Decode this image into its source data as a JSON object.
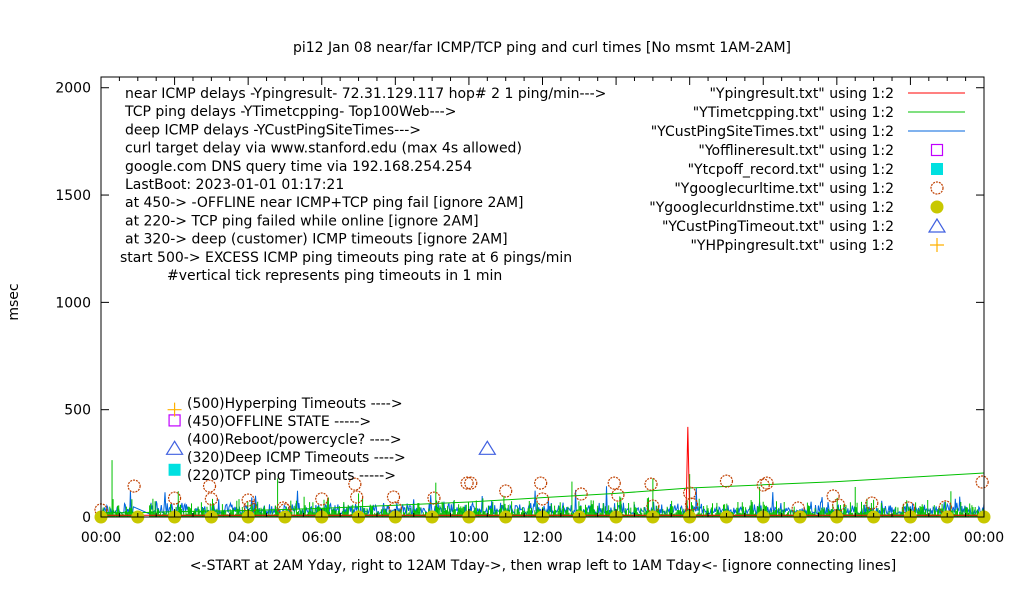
{
  "chart_data": {
    "type": "line",
    "title": "pi12  Jan 08  near/far ICMP/TCP ping and curl times [No msmt 1AM-2AM]",
    "xlabel": "<-START at 2AM Yday, right to 12AM Tday->, then wrap left to 1AM Tday<- [ignore connecting lines]",
    "ylabel": "msec",
    "xlim": [
      0,
      24
    ],
    "ylim": [
      0,
      2050
    ],
    "x_ticks": [
      "00:00",
      "02:00",
      "04:00",
      "06:00",
      "08:00",
      "10:00",
      "12:00",
      "14:00",
      "16:00",
      "18:00",
      "20:00",
      "22:00",
      "00:00"
    ],
    "y_ticks": [
      0,
      500,
      1000,
      1500,
      2000
    ],
    "grid": false,
    "legend_placement": "top-right",
    "notes": [
      "near ICMP delays -Ypingresult- 72.31.129.117 hop# 2 1 ping/min--->",
      "TCP ping delays -YTimetcpping- Top100Web--->",
      "deep ICMP delays -YCustPingSiteTimes--->",
      "curl target delay via www.stanford.edu (max 4s allowed)",
      "google.com DNS query time via 192.168.254.254",
      "LastBoot: 2023-01-01 01:17:21",
      "at 450-> -OFFLINE near ICMP+TCP ping fail [ignore 2AM]",
      "at 220-> TCP ping failed while online [ignore 2AM]",
      "at 320-> deep (customer) ICMP timeouts [ignore 2AM]",
      "start 500-> EXCESS ICMP ping timeouts ping rate at 6 pings/min",
      "#vertical tick represents ping timeouts in 1 min"
    ],
    "key_labels": [
      "(500)Hyperping Timeouts ---->",
      "(450)OFFLINE STATE ----->",
      "(400)Reboot/powercycle? ---->",
      "(320)Deep ICMP Timeouts ---->",
      "(220)TCP ping Timeouts ----->"
    ],
    "series": [
      {
        "name": "\"Ypingresult.txt\" using 1:2",
        "style": "line",
        "color": "#ff0000",
        "points": [
          [
            0,
            8
          ],
          [
            15.9,
            8
          ],
          [
            15.95,
            420
          ],
          [
            16.0,
            8
          ],
          [
            24,
            8
          ]
        ]
      },
      {
        "name": "\"YTimetcpping.txt\" using 1:2",
        "style": "line",
        "color": "#00c000",
        "points": [
          [
            0,
            20
          ],
          [
            1,
            20
          ],
          [
            2,
            25
          ],
          [
            4,
            30
          ],
          [
            6,
            40
          ],
          [
            8,
            55
          ],
          [
            10,
            70
          ],
          [
            12,
            90
          ],
          [
            14,
            110
          ],
          [
            16,
            135
          ],
          [
            18,
            150
          ],
          [
            20,
            165
          ],
          [
            22,
            185
          ],
          [
            24,
            205
          ]
        ],
        "spikes": [
          [
            0.3,
            265
          ],
          [
            2.1,
            120
          ],
          [
            4.8,
            180
          ],
          [
            7.0,
            110
          ],
          [
            9.1,
            160
          ],
          [
            12.8,
            165
          ],
          [
            15.0,
            180
          ],
          [
            16.0,
            200
          ],
          [
            17.9,
            140
          ],
          [
            20.5,
            140
          ],
          [
            23.1,
            120
          ]
        ]
      },
      {
        "name": "\"YCustPingSiteTimes.txt\" using 1:2",
        "style": "line",
        "color": "#0066dd",
        "baseline": 30
      },
      {
        "name": "\"Yofflineresult.txt\" using 1:2",
        "style": "open-square",
        "color": "#c000ff",
        "points": [
          [
            2.0,
            450
          ]
        ]
      },
      {
        "name": "\"Ytcpoff_record.txt\" using 1:2",
        "style": "filled-square",
        "color": "#00e0e0",
        "points": [
          [
            2.0,
            220
          ]
        ]
      },
      {
        "name": "\"Ygooglecurltime.txt\" using 1:2",
        "style": "open-circle",
        "color": "#c04000",
        "points": [
          [
            0.0,
            33
          ],
          [
            0.9,
            144
          ],
          [
            2.0,
            88
          ],
          [
            2.95,
            144
          ],
          [
            3.0,
            84
          ],
          [
            4.0,
            79
          ],
          [
            4.05,
            47
          ],
          [
            4.95,
            42
          ],
          [
            5.0,
            33
          ],
          [
            6.0,
            84
          ],
          [
            6.9,
            153
          ],
          [
            6.95,
            93
          ],
          [
            7.95,
            93
          ],
          [
            8.0,
            42
          ],
          [
            9.05,
            88
          ],
          [
            9.95,
            158
          ],
          [
            10.05,
            158
          ],
          [
            11.0,
            121
          ],
          [
            11.95,
            158
          ],
          [
            12.0,
            84
          ],
          [
            13.05,
            107
          ],
          [
            13.95,
            158
          ],
          [
            14.05,
            102
          ],
          [
            14.95,
            153
          ],
          [
            15.0,
            51
          ],
          [
            16.0,
            112
          ],
          [
            16.05,
            60
          ],
          [
            17.0,
            167
          ],
          [
            18.0,
            149
          ],
          [
            18.1,
            158
          ],
          [
            18.95,
            42
          ],
          [
            19.9,
            98
          ],
          [
            20.05,
            56
          ],
          [
            20.95,
            65
          ],
          [
            21.95,
            42
          ],
          [
            22.95,
            47
          ],
          [
            23.95,
            163
          ]
        ]
      },
      {
        "name": "\"Ygooglecurldnstime.txt\" using 1:2",
        "style": "filled-circle",
        "color": "#c8c800",
        "points": [
          [
            0,
            0
          ],
          [
            1,
            0
          ],
          [
            2,
            0
          ],
          [
            3,
            0
          ],
          [
            4,
            0
          ],
          [
            5,
            0
          ],
          [
            6,
            0
          ],
          [
            7,
            0
          ],
          [
            8,
            0
          ],
          [
            9,
            0
          ],
          [
            10,
            0
          ],
          [
            11,
            0
          ],
          [
            12,
            0
          ],
          [
            13,
            0
          ],
          [
            14,
            0
          ],
          [
            15,
            0
          ],
          [
            16,
            0
          ],
          [
            17,
            0
          ],
          [
            18,
            0
          ],
          [
            19,
            0
          ],
          [
            20,
            0
          ],
          [
            21,
            0
          ],
          [
            22,
            0
          ],
          [
            23,
            0
          ],
          [
            24,
            0
          ]
        ]
      },
      {
        "name": "\"YCustPingTimeout.txt\" using 1:2",
        "style": "open-triangle",
        "color": "#4060e0",
        "points": [
          [
            2.0,
            320
          ],
          [
            10.5,
            320
          ]
        ]
      },
      {
        "name": "\"YHPpingresult.txt\" using 1:2",
        "style": "plus",
        "color": "#ffb000",
        "points": [
          [
            2.0,
            500
          ]
        ]
      }
    ]
  }
}
